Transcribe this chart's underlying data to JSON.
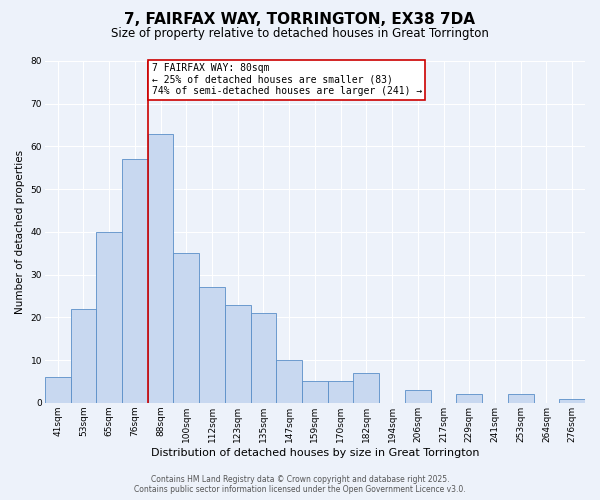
{
  "title": "7, FAIRFAX WAY, TORRINGTON, EX38 7DA",
  "subtitle": "Size of property relative to detached houses in Great Torrington",
  "xlabel": "Distribution of detached houses by size in Great Torrington",
  "ylabel": "Number of detached properties",
  "categories": [
    "41sqm",
    "53sqm",
    "65sqm",
    "76sqm",
    "88sqm",
    "100sqm",
    "112sqm",
    "123sqm",
    "135sqm",
    "147sqm",
    "159sqm",
    "170sqm",
    "182sqm",
    "194sqm",
    "206sqm",
    "217sqm",
    "229sqm",
    "241sqm",
    "253sqm",
    "264sqm",
    "276sqm"
  ],
  "values": [
    6,
    22,
    40,
    57,
    63,
    35,
    27,
    23,
    21,
    10,
    5,
    5,
    7,
    0,
    3,
    0,
    2,
    0,
    2,
    0,
    1
  ],
  "bar_color": "#c8d8f0",
  "bar_edge_color": "#5a8ec8",
  "background_color": "#edf2fa",
  "grid_color": "#ffffff",
  "annotation_line1": "7 FAIRFAX WAY: 80sqm",
  "annotation_line2": "← 25% of detached houses are smaller (83)",
  "annotation_line3": "74% of semi-detached houses are larger (241) →",
  "vline_x": 3.5,
  "vline_color": "#cc0000",
  "annotation_box_edge": "#cc0000",
  "ylim": [
    0,
    80
  ],
  "yticks": [
    0,
    10,
    20,
    30,
    40,
    50,
    60,
    70,
    80
  ],
  "footer_line1": "Contains HM Land Registry data © Crown copyright and database right 2025.",
  "footer_line2": "Contains public sector information licensed under the Open Government Licence v3.0.",
  "title_fontsize": 11,
  "subtitle_fontsize": 8.5,
  "xlabel_fontsize": 8,
  "ylabel_fontsize": 7.5,
  "tick_fontsize": 6.5,
  "footer_fontsize": 5.5,
  "annotation_fontsize": 7
}
